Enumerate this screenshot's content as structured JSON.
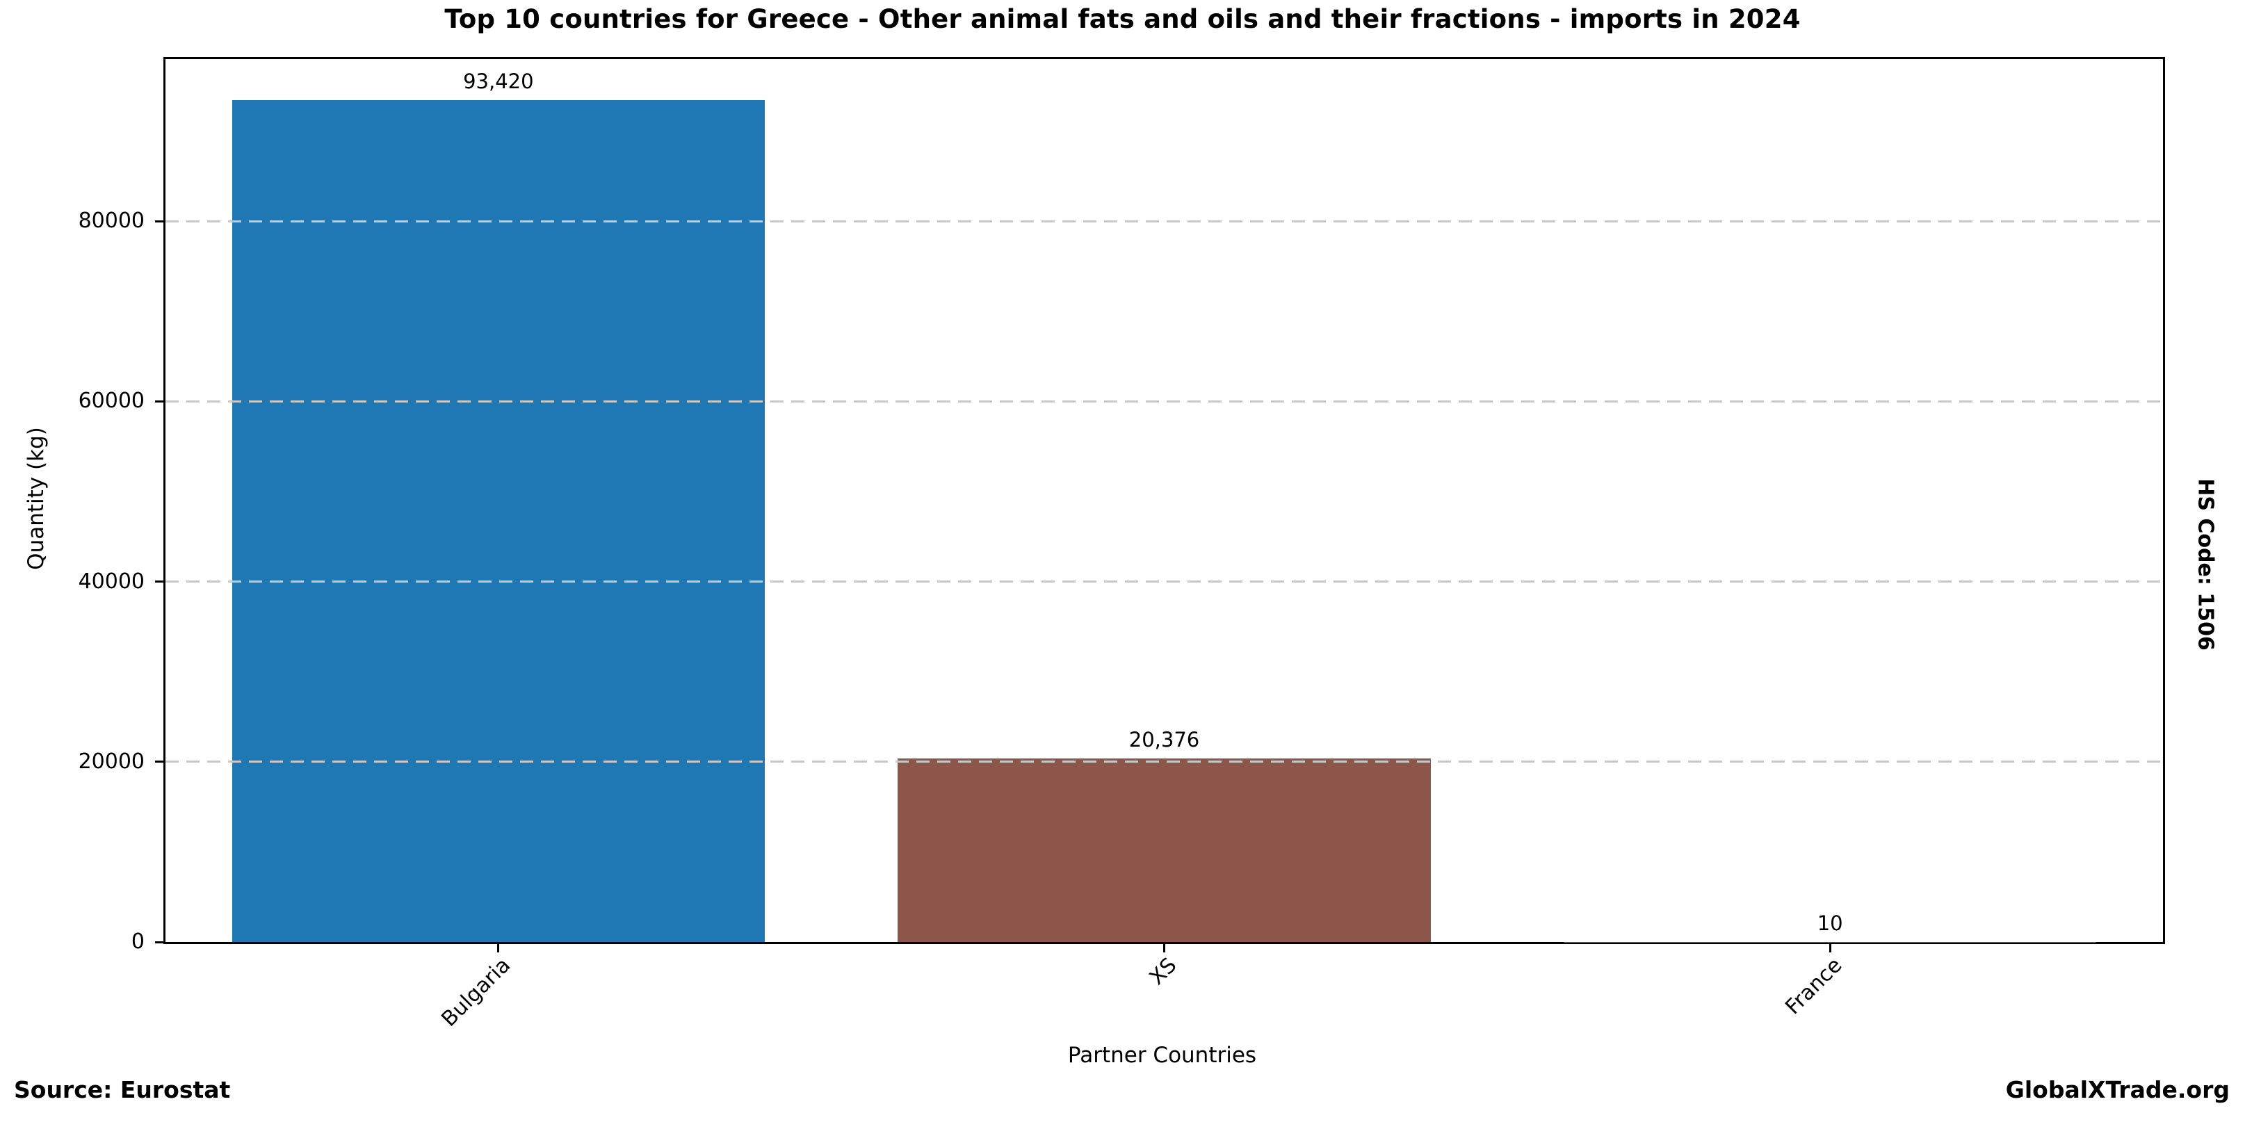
{
  "chart_data": {
    "type": "bar",
    "title": "Top 10 countries for Greece - Other animal fats and oils and their fractions - imports in 2024",
    "xlabel": "Partner Countries",
    "ylabel": "Quantity (kg)",
    "categories": [
      "Bulgaria",
      "XS",
      "France"
    ],
    "values": [
      93420,
      20376,
      10
    ],
    "value_labels": [
      "93,420",
      "20,376",
      "10"
    ],
    "bar_colors": [
      "#1f77b4",
      "#8c564b",
      null
    ],
    "ylim": [
      0,
      98000
    ],
    "yticks": [
      0,
      20000,
      40000,
      60000,
      80000
    ],
    "grid": "horizontal dashed, drawn above bars",
    "legend": "none",
    "annotations": {
      "hs_code": "HS Code: 1506"
    }
  },
  "footer": {
    "source": "Source: Eurostat",
    "brand": "GlobalXTrade.org"
  },
  "colors": {
    "bar_blue": "#1f77b4",
    "bar_brown": "#8c564b",
    "gridline": "#c8c8c8",
    "axis": "#000000"
  }
}
